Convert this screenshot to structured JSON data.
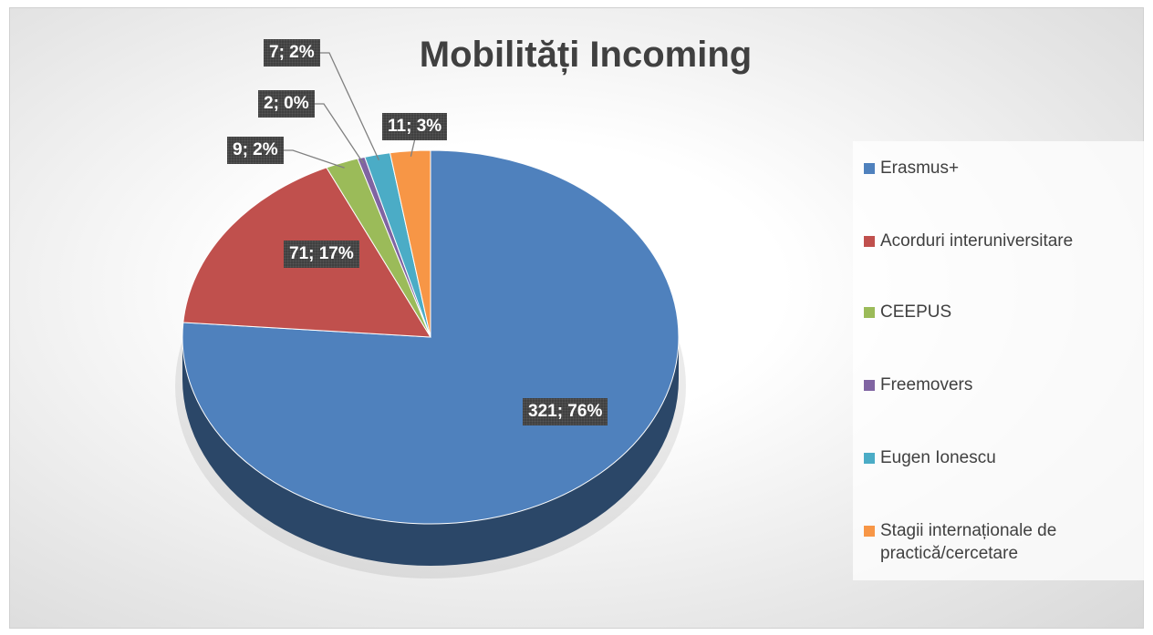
{
  "chart_data": {
    "type": "pie",
    "title": "Mobilități Incoming",
    "categories": [
      "Erasmus+",
      "Acorduri interuniversitare",
      "CEEPUS",
      "Freemovers",
      "Eugen Ionescu",
      "Stagii internaționale de practică/cercetare"
    ],
    "values": [
      321,
      71,
      9,
      2,
      7,
      11
    ],
    "value_labels": [
      "321; 76%",
      "71; 17%",
      "9; 2%",
      "2; 0%",
      "7; 2%",
      "11; 3%"
    ],
    "colors": [
      "#4f81bd",
      "#c0504d",
      "#9bbb59",
      "#8064a2",
      "#4bacc6",
      "#f79646"
    ],
    "legend": "right"
  }
}
